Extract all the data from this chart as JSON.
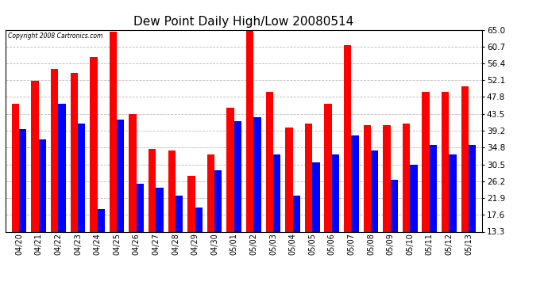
{
  "title": "Dew Point Daily High/Low 20080514",
  "copyright": "Copyright 2008 Cartronics.com",
  "dates": [
    "04/20",
    "04/21",
    "04/22",
    "04/23",
    "04/24",
    "04/25",
    "04/26",
    "04/27",
    "04/28",
    "04/29",
    "04/30",
    "05/01",
    "05/02",
    "05/03",
    "05/04",
    "05/05",
    "05/06",
    "05/07",
    "05/08",
    "05/09",
    "05/10",
    "05/11",
    "05/12",
    "05/13"
  ],
  "highs": [
    46.0,
    52.0,
    55.0,
    54.0,
    58.0,
    64.5,
    43.5,
    34.5,
    34.0,
    27.5,
    33.0,
    45.0,
    65.0,
    49.0,
    40.0,
    41.0,
    46.0,
    61.0,
    40.5,
    40.5,
    41.0,
    49.0,
    49.0,
    50.5
  ],
  "lows": [
    39.5,
    37.0,
    46.0,
    41.0,
    19.0,
    42.0,
    25.5,
    24.5,
    22.5,
    19.5,
    29.0,
    41.5,
    42.5,
    33.0,
    22.5,
    31.0,
    33.0,
    38.0,
    34.0,
    26.5,
    30.5,
    35.5,
    33.0,
    35.5
  ],
  "high_color": "#FF0000",
  "low_color": "#0000FF",
  "bg_color": "#FFFFFF",
  "plot_bg_color": "#FFFFFF",
  "grid_color": "#BBBBBB",
  "title_fontsize": 11,
  "yticks": [
    13.3,
    17.6,
    21.9,
    26.2,
    30.5,
    34.8,
    39.2,
    43.5,
    47.8,
    52.1,
    56.4,
    60.7,
    65.0
  ],
  "ymin": 13.3,
  "ymax": 65.0,
  "bar_width": 0.38,
  "figwidth": 6.9,
  "figheight": 3.75,
  "dpi": 100
}
